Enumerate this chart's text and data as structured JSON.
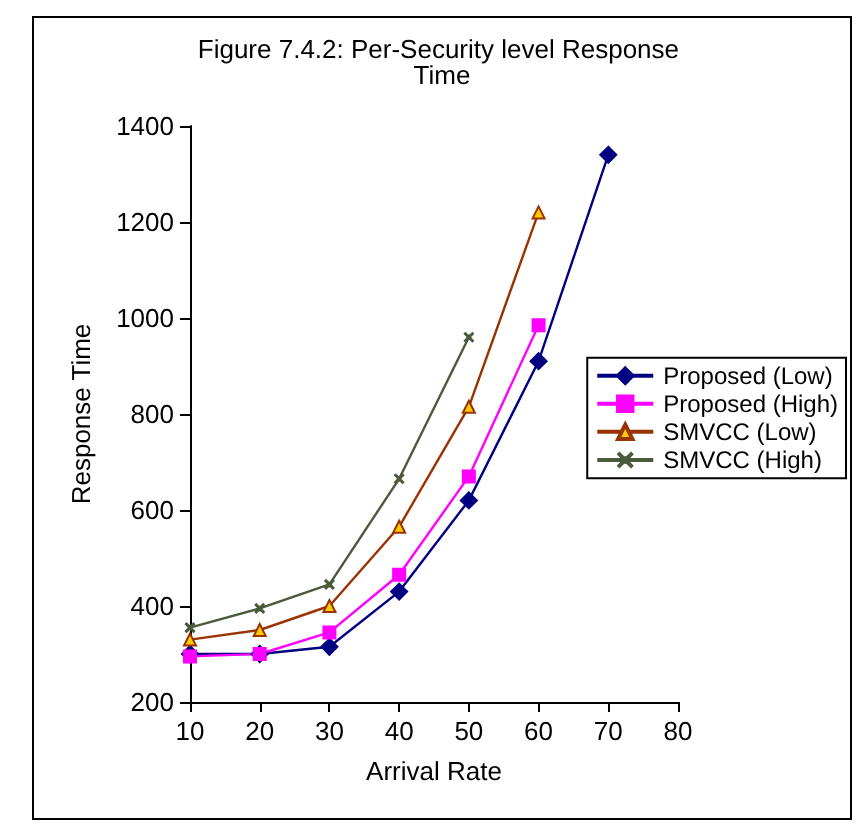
{
  "chart_data": {
    "type": "line",
    "title": "Figure 7.4.2: Per-Security level Response Time",
    "xlabel": "Arrival Rate",
    "ylabel": "Response Time",
    "x": [
      10,
      20,
      30,
      40,
      50,
      60,
      70
    ],
    "series": [
      {
        "name": "Proposed (Low)",
        "color": "#000080",
        "marker": "diamond",
        "values": [
          300,
          300,
          315,
          430,
          620,
          910,
          1340
        ]
      },
      {
        "name": "Proposed (High)",
        "color": "#ff00ff",
        "marker": "square",
        "values": [
          295,
          300,
          345,
          465,
          670,
          985,
          null
        ]
      },
      {
        "name": "SMVCC (Low)",
        "color": "#993300",
        "marker": "triangle",
        "values": [
          330,
          350,
          400,
          565,
          815,
          1220,
          null
        ]
      },
      {
        "name": "SMVCC (High)",
        "color": "#4a5a3a",
        "marker": "cross",
        "values": [
          355,
          395,
          445,
          665,
          960,
          null,
          null
        ]
      }
    ],
    "xlim": [
      10,
      80
    ],
    "xticks": [
      10,
      20,
      30,
      40,
      50,
      60,
      70,
      80
    ],
    "ylim": [
      200,
      1400
    ],
    "yticks": [
      200,
      400,
      600,
      800,
      1000,
      1200,
      1400
    ],
    "grid": false,
    "legend": "right",
    "line_style": "solid"
  }
}
